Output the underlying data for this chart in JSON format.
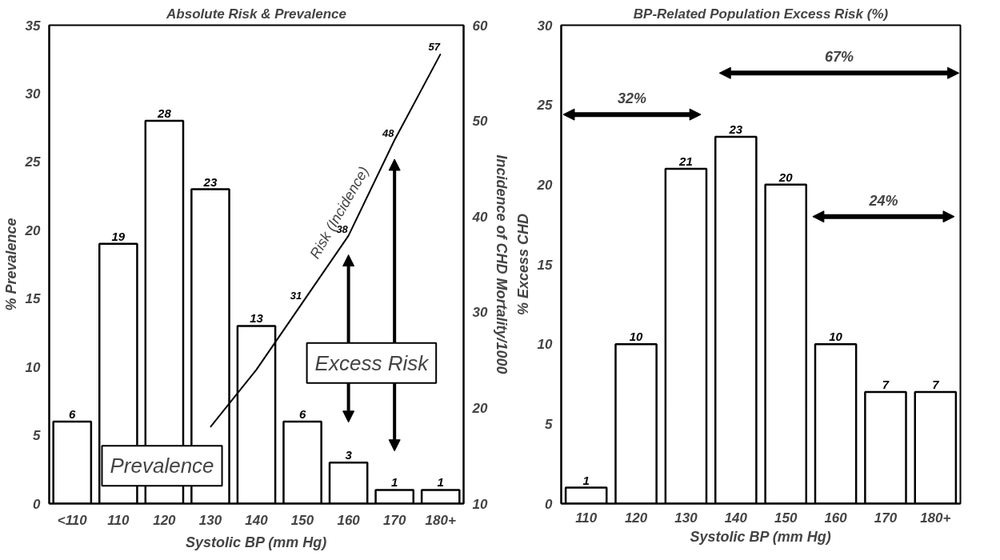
{
  "chart_data": [
    {
      "type": "bar",
      "title": "Absolute Risk & Prevalence",
      "xlabel": "Systolic BP (mm Hg)",
      "ylabel": "% Prevalence",
      "y2label": "Incidence of CHD Mortality/1000",
      "categories": [
        "<110",
        "110",
        "120",
        "130",
        "140",
        "150",
        "160",
        "170",
        "180+"
      ],
      "series": [
        {
          "type": "bar",
          "color": "#ffffff",
          "values": [
            6,
            19,
            28,
            23,
            13,
            6,
            3,
            1,
            1
          ],
          "value_labels": [
            "6",
            "19",
            "28",
            "23",
            "13",
            "6",
            "3",
            "1",
            "1"
          ]
        },
        {
          "type": "line",
          "axis": "y2",
          "color": "#000000",
          "values": [
            null,
            null,
            null,
            18,
            24,
            31,
            38,
            48,
            57
          ],
          "value_labels": [
            null,
            null,
            null,
            null,
            null,
            "31",
            "38",
            "48",
            "57"
          ]
        }
      ],
      "ylim": [
        0,
        35
      ],
      "yticks": [
        0,
        5,
        10,
        15,
        20,
        25,
        30,
        35
      ],
      "y2lim": [
        10,
        60
      ],
      "y2ticks": [
        10,
        20,
        30,
        40,
        50,
        60
      ],
      "grid": false,
      "marker": "none",
      "line_style": "solid",
      "annotations": [
        "Prevalence",
        "Excess Risk",
        "Risk (Incidence)"
      ]
    },
    {
      "type": "bar",
      "title": "BP-Related Population Excess Risk (%)",
      "xlabel": "Systolic BP (mm Hg)",
      "ylabel": "% Excess CHD",
      "categories": [
        "110",
        "120",
        "130",
        "140",
        "150",
        "160",
        "170",
        "180+"
      ],
      "values": [
        1,
        10,
        21,
        23,
        20,
        10,
        7,
        7
      ],
      "color": "#ffffff",
      "data_labels": true,
      "ylim": [
        0,
        30
      ],
      "yticks": [
        0,
        5,
        10,
        15,
        20,
        25,
        30
      ],
      "grid": false,
      "annotations": [
        "32%",
        "67%",
        "24%"
      ]
    }
  ]
}
